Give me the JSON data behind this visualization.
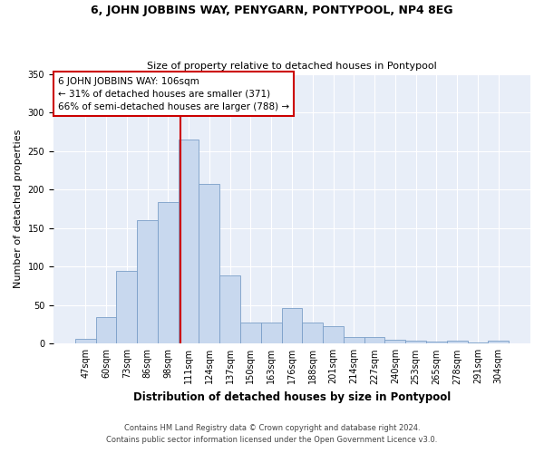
{
  "title": "6, JOHN JOBBINS WAY, PENYGARN, PONTYPOOL, NP4 8EG",
  "subtitle": "Size of property relative to detached houses in Pontypool",
  "xlabel": "Distribution of detached houses by size in Pontypool",
  "ylabel": "Number of detached properties",
  "categories": [
    "47sqm",
    "60sqm",
    "73sqm",
    "86sqm",
    "98sqm",
    "111sqm",
    "124sqm",
    "137sqm",
    "150sqm",
    "163sqm",
    "176sqm",
    "188sqm",
    "201sqm",
    "214sqm",
    "227sqm",
    "240sqm",
    "253sqm",
    "265sqm",
    "278sqm",
    "291sqm",
    "304sqm"
  ],
  "values": [
    6,
    34,
    94,
    160,
    184,
    265,
    207,
    89,
    27,
    27,
    46,
    27,
    23,
    8,
    9,
    5,
    4,
    3,
    4,
    1,
    4
  ],
  "bar_color": "#c8d8ee",
  "bar_edge_color": "#7a9ec8",
  "property_label": "6 JOHN JOBBINS WAY: 106sqm",
  "annotation_line1": "← 31% of detached houses are smaller (371)",
  "annotation_line2": "66% of semi-detached houses are larger (788) →",
  "vline_color": "#cc0000",
  "vline_position": 4.62,
  "annotation_box_facecolor": "#ffffff",
  "annotation_box_edgecolor": "#cc0000",
  "ylim": [
    0,
    350
  ],
  "yticks": [
    0,
    50,
    100,
    150,
    200,
    250,
    300,
    350
  ],
  "footnote1": "Contains HM Land Registry data © Crown copyright and database right 2024.",
  "footnote2": "Contains public sector information licensed under the Open Government Licence v3.0.",
  "fig_facecolor": "#ffffff",
  "axes_facecolor": "#e8eef8",
  "grid_color": "#ffffff",
  "title_fontsize": 9,
  "subtitle_fontsize": 8,
  "xlabel_fontsize": 8.5,
  "ylabel_fontsize": 8,
  "tick_fontsize": 7,
  "footnote_fontsize": 6,
  "annotation_fontsize": 7.5
}
